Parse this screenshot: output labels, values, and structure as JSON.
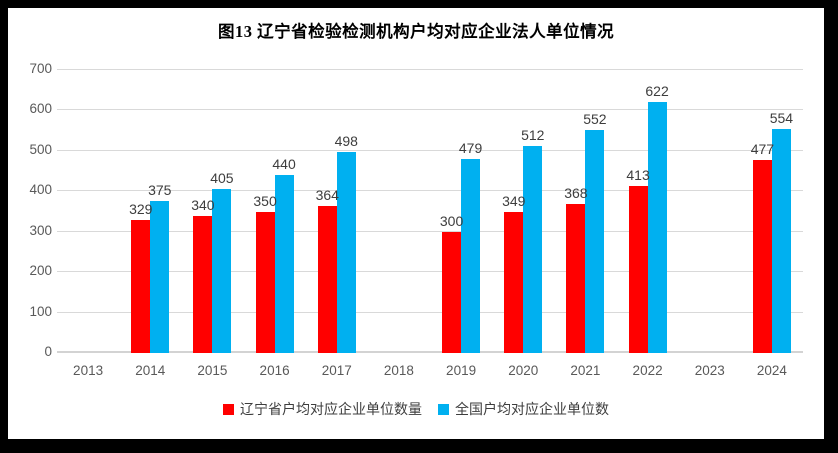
{
  "frame": {
    "background": "#ffffff",
    "border_color": "#000000"
  },
  "chart_data": {
    "type": "bar",
    "title": "图13 辽宁省检验检测机构户均对应企业法人单位情况",
    "categories": [
      "2013",
      "2014",
      "2015",
      "2016",
      "2017",
      "2018",
      "2019",
      "2020",
      "2021",
      "2022",
      "2023",
      "2024"
    ],
    "series": [
      {
        "name": "辽宁省户均对应企业单位数量",
        "color": "#ff0000",
        "values": [
          null,
          329,
          340,
          350,
          364,
          null,
          300,
          349,
          368,
          413,
          null,
          477
        ]
      },
      {
        "name": "全国户均对应企业单位数",
        "color": "#00b0f0",
        "values": [
          null,
          375,
          405,
          440,
          498,
          null,
          479,
          512,
          552,
          622,
          null,
          554
        ]
      }
    ],
    "ylim": [
      0,
      700
    ],
    "ytick_step": 100,
    "yticks": [
      "0",
      "100",
      "200",
      "300",
      "400",
      "500",
      "600",
      "700"
    ],
    "grid": true,
    "data_labels": true,
    "legend_position": "bottom",
    "colors": {
      "grid_line": "#d9d9d9",
      "axis_text": "#595959",
      "data_label_text": "#3d3d3d",
      "title_text": "#000000",
      "legend_text": "#3d3d3d"
    }
  }
}
